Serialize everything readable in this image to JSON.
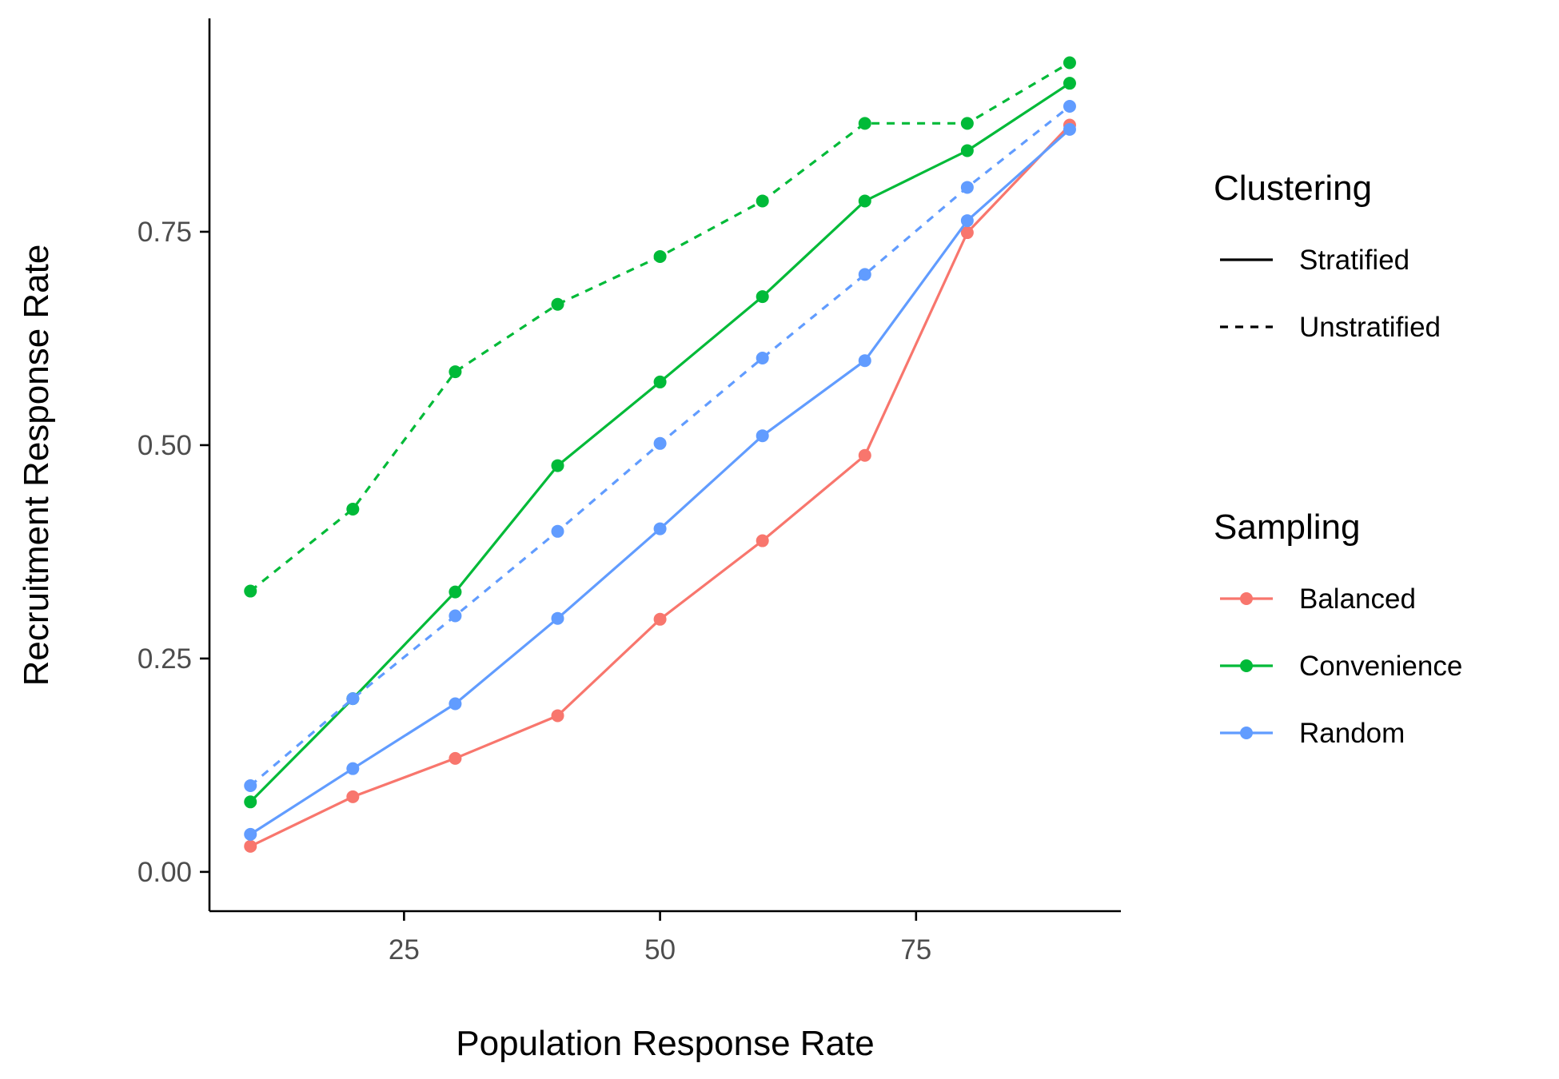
{
  "chart_data": {
    "type": "line",
    "xlabel": "Population Response Rate",
    "ylabel": "Recruitment Response Rate",
    "x": [
      10,
      20,
      30,
      40,
      50,
      60,
      70,
      80,
      90
    ],
    "xlim": [
      6,
      95
    ],
    "ylim": [
      -0.046,
      1.0
    ],
    "x_ticks": [
      25,
      50,
      75
    ],
    "x_tick_labels": [
      "25",
      "50",
      "75"
    ],
    "y_ticks": [
      0,
      0.25,
      0.5,
      0.75
    ],
    "y_tick_labels": [
      "0.00",
      "0.25",
      "0.50",
      "0.75"
    ],
    "grid": false,
    "legend_position": "right",
    "colors": {
      "Balanced": "#F8766D",
      "Convenience": "#00BA38",
      "Random": "#619CFF"
    },
    "linetypes": {
      "Stratified": "solid",
      "Unstratified": "dashed"
    },
    "legends": [
      {
        "title": "Clustering",
        "kind": "linetype",
        "entries": [
          "Stratified",
          "Unstratified"
        ]
      },
      {
        "title": "Sampling",
        "kind": "color",
        "entries": [
          "Balanced",
          "Convenience",
          "Random"
        ]
      }
    ],
    "series": [
      {
        "sampling": "Balanced",
        "clustering": "Stratified",
        "values": [
          0.03,
          0.088,
          0.133,
          0.183,
          0.296,
          0.388,
          0.488,
          0.749,
          0.875
        ]
      },
      {
        "sampling": "Convenience",
        "clustering": "Stratified",
        "values": [
          0.082,
          0.203,
          0.328,
          0.476,
          0.574,
          0.674,
          0.786,
          0.845,
          0.924
        ]
      },
      {
        "sampling": "Random",
        "clustering": "Stratified",
        "values": [
          0.044,
          0.121,
          0.197,
          0.297,
          0.402,
          0.511,
          0.599,
          0.763,
          0.87
        ]
      },
      {
        "sampling": "Convenience",
        "clustering": "Unstratified",
        "values": [
          0.329,
          0.425,
          0.586,
          0.665,
          0.721,
          0.786,
          0.877,
          0.877,
          0.948
        ]
      },
      {
        "sampling": "Random",
        "clustering": "Unstratified",
        "values": [
          0.101,
          0.203,
          0.3,
          0.399,
          0.502,
          0.602,
          0.7,
          0.802,
          0.897
        ]
      }
    ]
  }
}
